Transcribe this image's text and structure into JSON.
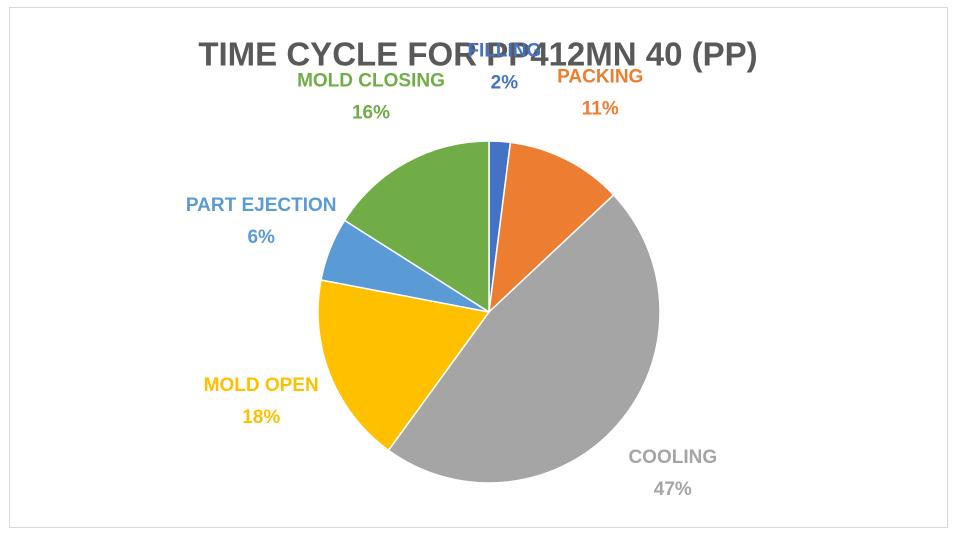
{
  "chart_data": {
    "type": "pie",
    "title": "TIME CYCLE FOR PP412MN 40 (PP)",
    "categories": [
      "FILLING",
      "PACKING",
      "COOLING",
      "MOLD OPEN",
      "PART EJECTION",
      "MOLD CLOSING"
    ],
    "values": [
      2,
      11,
      47,
      18,
      6,
      16
    ],
    "value_labels": [
      "2%",
      "11%",
      "47%",
      "18%",
      "6%",
      "16%"
    ],
    "colors": [
      "#4472c4",
      "#ed7d31",
      "#a5a5a5",
      "#ffc000",
      "#5b9bd5",
      "#70ad47"
    ]
  }
}
